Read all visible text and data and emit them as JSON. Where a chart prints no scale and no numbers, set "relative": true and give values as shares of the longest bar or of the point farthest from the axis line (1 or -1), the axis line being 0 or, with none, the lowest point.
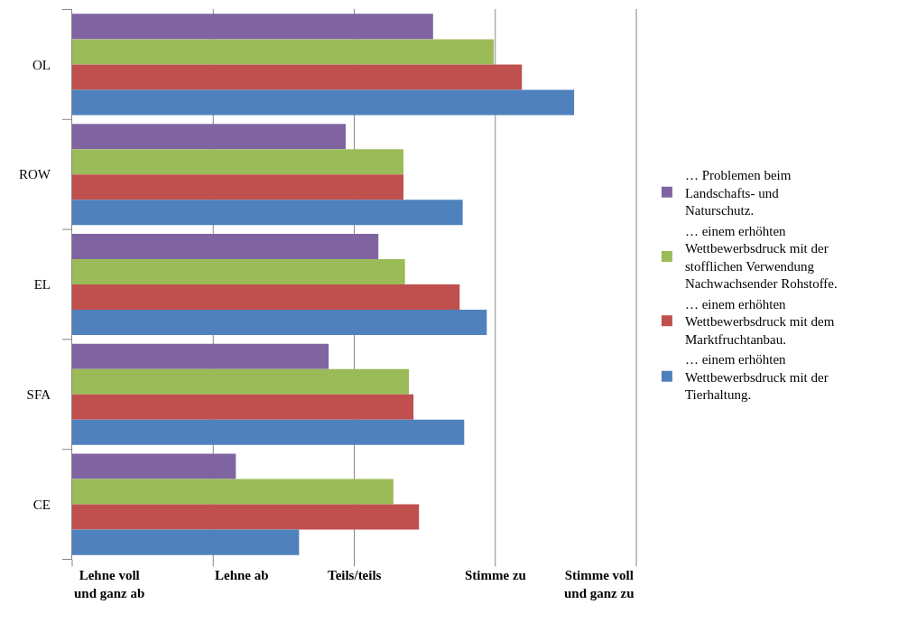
{
  "chart_data": {
    "type": "bar",
    "orientation": "horizontal",
    "relative": true,
    "categories": [
      "OL",
      "ROW",
      "EL",
      "SFA",
      "CE"
    ],
    "series": [
      {
        "name": "… Problemen beim Landschafts- und Naturschutz.",
        "color": "#8064a2",
        "values": [
          0.719,
          0.545,
          0.61,
          0.511,
          0.326
        ]
      },
      {
        "name": "… einem erhöhten Wettbewerbsdruck mit der stofflichen Verwendung Nachwachsender Rohstoffe.",
        "color": "#9bbb59",
        "values": [
          0.84,
          0.66,
          0.663,
          0.671,
          0.64
        ]
      },
      {
        "name": "… einem erhöhten Wettbewerbsdruck mit dem Marktfruchtanbau.",
        "color": "#c0504d",
        "values": [
          0.896,
          0.66,
          0.772,
          0.68,
          0.691
        ]
      },
      {
        "name": "… einem erhöhten Wettbewerbsdruck mit der Tierhaltung.",
        "color": "#4f81bd",
        "values": [
          1,
          0.778,
          0.826,
          0.781,
          0.452
        ]
      }
    ],
    "annotations": [
      "Lehne voll und ganz ab",
      "Lehne ab",
      "Teils/teils",
      "Stimme zu",
      "Stimme voll und ganz zu"
    ],
    "grid": "x",
    "legend": "right"
  }
}
